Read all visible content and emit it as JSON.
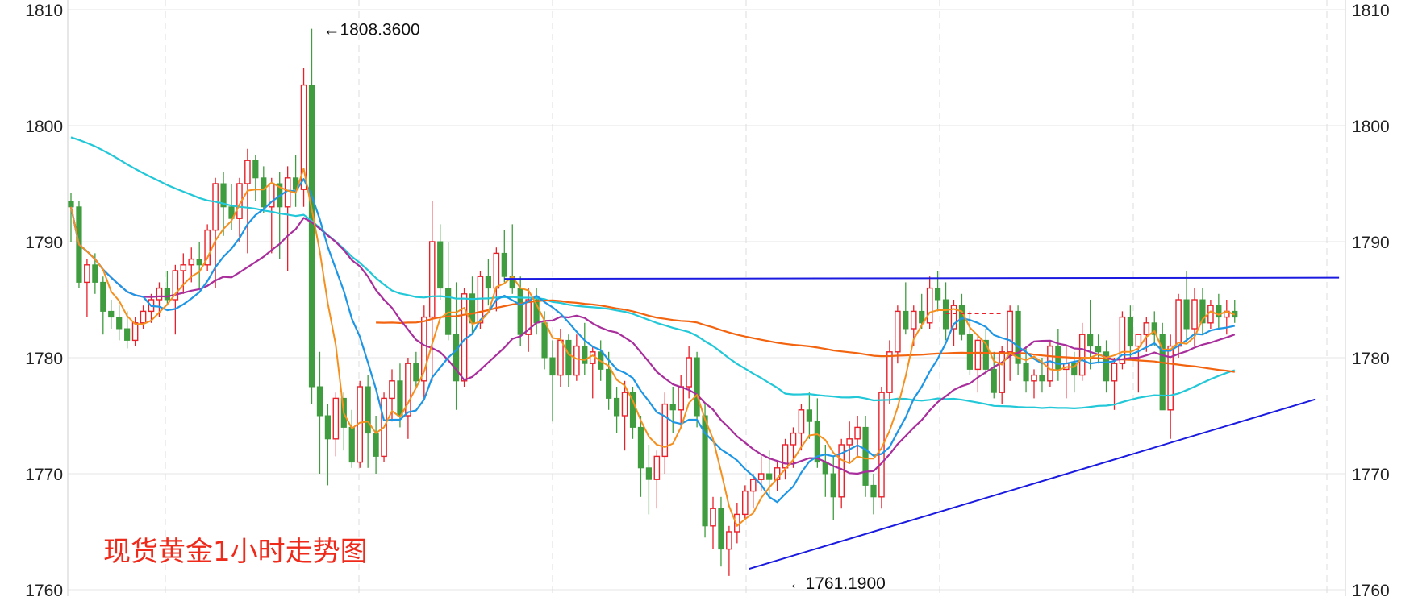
{
  "chart_data": {
    "type": "candlestick",
    "title": "现货黄金1小时走势图",
    "ylim": [
      1760,
      1810
    ],
    "y_ticks": [
      "1760",
      "1770",
      "1780",
      "1790",
      "1800",
      "1810"
    ],
    "grid": true,
    "colors": {
      "up": "#e8202a",
      "down": "#3f9c3f",
      "ma_orange": "#f5901e",
      "ma_blue": "#1e96e6",
      "ma_purple": "#a82e9c",
      "ma_cyan": "#22c8d8",
      "ma_darkorange": "#f26410",
      "trendline": "#1a1ae0",
      "title": "#ee2a1b"
    },
    "annotations": [
      {
        "text": "←1808.3600",
        "x": 31,
        "y": 1808.36
      },
      {
        "text": "←1761.1900",
        "x": 89,
        "y": 1761.19
      }
    ],
    "candles": [
      [
        1793.5,
        1794.2,
        1790.0,
        1793.0
      ],
      [
        1793.0,
        1793.5,
        1786.0,
        1786.5
      ],
      [
        1786.5,
        1788.5,
        1783.5,
        1788.0
      ],
      [
        1788.0,
        1789.0,
        1785.5,
        1786.5
      ],
      [
        1786.5,
        1787.0,
        1782.0,
        1784.0
      ],
      [
        1784.0,
        1785.0,
        1782.5,
        1783.5
      ],
      [
        1783.5,
        1784.5,
        1781.5,
        1782.5
      ],
      [
        1782.5,
        1784.0,
        1780.8,
        1781.5
      ],
      [
        1781.5,
        1783.5,
        1781.0,
        1783.0
      ],
      [
        1783.0,
        1784.5,
        1782.5,
        1784.0
      ],
      [
        1784.0,
        1785.5,
        1783.0,
        1785.0
      ],
      [
        1785.0,
        1786.5,
        1783.5,
        1786.0
      ],
      [
        1786.0,
        1787.5,
        1784.5,
        1785.0
      ],
      [
        1785.0,
        1788.0,
        1782.0,
        1787.5
      ],
      [
        1787.5,
        1789.0,
        1785.5,
        1788.0
      ],
      [
        1788.0,
        1789.5,
        1786.5,
        1788.5
      ],
      [
        1788.5,
        1790.0,
        1786.0,
        1788.0
      ],
      [
        1788.0,
        1791.5,
        1787.5,
        1791.0
      ],
      [
        1791.0,
        1795.5,
        1786.0,
        1795.0
      ],
      [
        1795.0,
        1796.0,
        1790.5,
        1793.0
      ],
      [
        1793.0,
        1795.0,
        1791.0,
        1792.0
      ],
      [
        1792.0,
        1795.5,
        1790.0,
        1795.0
      ],
      [
        1795.0,
        1798.0,
        1789.0,
        1797.0
      ],
      [
        1797.0,
        1797.5,
        1793.5,
        1795.5
      ],
      [
        1795.5,
        1796.5,
        1792.5,
        1793.0
      ],
      [
        1793.0,
        1795.5,
        1789.0,
        1795.0
      ],
      [
        1795.0,
        1796.0,
        1788.5,
        1793.0
      ],
      [
        1793.0,
        1796.5,
        1787.5,
        1795.5
      ],
      [
        1795.5,
        1797.5,
        1793.0,
        1794.5
      ],
      [
        1794.5,
        1805.0,
        1793.0,
        1803.5
      ],
      [
        1803.5,
        1808.36,
        1776.0,
        1777.5
      ],
      [
        1777.5,
        1780.5,
        1770.0,
        1775.0
      ],
      [
        1775.0,
        1776.0,
        1769.0,
        1773.0
      ],
      [
        1773.0,
        1777.0,
        1771.5,
        1776.5
      ],
      [
        1776.5,
        1777.0,
        1772.0,
        1774.0
      ],
      [
        1774.0,
        1775.5,
        1770.5,
        1771.0
      ],
      [
        1771.0,
        1778.0,
        1770.5,
        1777.5
      ],
      [
        1777.5,
        1778.5,
        1770.5,
        1773.5
      ],
      [
        1773.5,
        1775.0,
        1770.0,
        1771.5
      ],
      [
        1771.5,
        1777.0,
        1771.0,
        1776.5
      ],
      [
        1776.5,
        1779.0,
        1774.5,
        1778.0
      ],
      [
        1778.0,
        1779.5,
        1774.0,
        1775.0
      ],
      [
        1775.0,
        1780.0,
        1773.0,
        1779.5
      ],
      [
        1779.5,
        1780.5,
        1777.5,
        1778.0
      ],
      [
        1778.0,
        1784.5,
        1776.5,
        1783.5
      ],
      [
        1783.5,
        1793.5,
        1778.0,
        1790.0
      ],
      [
        1790.0,
        1791.5,
        1785.0,
        1786.0
      ],
      [
        1786.0,
        1790.0,
        1781.5,
        1782.0
      ],
      [
        1782.0,
        1786.5,
        1775.5,
        1778.0
      ],
      [
        1778.0,
        1786.0,
        1777.5,
        1785.5
      ],
      [
        1785.5,
        1787.0,
        1782.0,
        1783.0
      ],
      [
        1783.0,
        1787.5,
        1782.5,
        1787.0
      ],
      [
        1787.0,
        1788.5,
        1784.5,
        1786.0
      ],
      [
        1786.0,
        1789.5,
        1784.0,
        1789.0
      ],
      [
        1789.0,
        1791.0,
        1786.5,
        1787.0
      ],
      [
        1787.0,
        1791.5,
        1785.5,
        1786.0
      ],
      [
        1786.0,
        1787.0,
        1781.0,
        1782.0
      ],
      [
        1782.0,
        1786.0,
        1780.5,
        1785.0
      ],
      [
        1785.0,
        1786.0,
        1782.0,
        1783.0
      ],
      [
        1783.0,
        1784.0,
        1779.0,
        1780.0
      ],
      [
        1780.0,
        1781.5,
        1774.5,
        1778.5
      ],
      [
        1778.5,
        1782.5,
        1777.5,
        1781.5
      ],
      [
        1781.5,
        1782.0,
        1777.5,
        1778.5
      ],
      [
        1778.5,
        1782.0,
        1778.0,
        1781.0
      ],
      [
        1781.0,
        1783.0,
        1778.5,
        1779.5
      ],
      [
        1779.5,
        1781.0,
        1776.5,
        1780.5
      ],
      [
        1780.5,
        1781.5,
        1778.0,
        1779.0
      ],
      [
        1779.0,
        1780.5,
        1775.5,
        1776.5
      ],
      [
        1776.5,
        1777.5,
        1773.5,
        1775.0
      ],
      [
        1775.0,
        1778.0,
        1772.0,
        1777.0
      ],
      [
        1777.0,
        1777.5,
        1773.0,
        1774.0
      ],
      [
        1774.0,
        1775.0,
        1768.0,
        1770.5
      ],
      [
        1770.5,
        1772.5,
        1766.5,
        1769.5
      ],
      [
        1769.5,
        1772.0,
        1767.0,
        1771.5
      ],
      [
        1771.5,
        1777.0,
        1770.0,
        1776.0
      ],
      [
        1776.0,
        1777.5,
        1773.5,
        1775.5
      ],
      [
        1775.5,
        1778.5,
        1774.0,
        1777.5
      ],
      [
        1777.5,
        1781.0,
        1776.5,
        1780.0
      ],
      [
        1780.0,
        1780.5,
        1774.0,
        1775.0
      ],
      [
        1775.0,
        1776.0,
        1764.5,
        1765.5
      ],
      [
        1765.5,
        1768.0,
        1763.5,
        1767.0
      ],
      [
        1767.0,
        1768.0,
        1762.0,
        1763.5
      ],
      [
        1763.5,
        1765.5,
        1761.19,
        1765.0
      ],
      [
        1765.0,
        1767.5,
        1764.0,
        1766.5
      ],
      [
        1766.5,
        1769.0,
        1766.0,
        1768.5
      ],
      [
        1768.5,
        1770.0,
        1767.0,
        1769.5
      ],
      [
        1769.5,
        1771.5,
        1768.5,
        1770.0
      ],
      [
        1770.0,
        1772.0,
        1768.0,
        1769.5
      ],
      [
        1769.5,
        1771.0,
        1768.5,
        1770.5
      ],
      [
        1770.5,
        1773.0,
        1769.5,
        1772.5
      ],
      [
        1772.5,
        1774.0,
        1770.5,
        1773.5
      ],
      [
        1773.5,
        1776.0,
        1772.0,
        1775.5
      ],
      [
        1775.5,
        1777.0,
        1773.0,
        1774.5
      ],
      [
        1774.5,
        1776.5,
        1770.5,
        1771.0
      ],
      [
        1771.0,
        1772.5,
        1768.0,
        1770.0
      ],
      [
        1770.0,
        1771.5,
        1766.0,
        1768.0
      ],
      [
        1768.0,
        1773.0,
        1767.0,
        1772.5
      ],
      [
        1772.5,
        1774.5,
        1771.0,
        1773.0
      ],
      [
        1773.0,
        1775.0,
        1771.5,
        1774.0
      ],
      [
        1774.0,
        1775.0,
        1768.0,
        1769.0
      ],
      [
        1769.0,
        1770.0,
        1766.5,
        1768.0
      ],
      [
        1768.0,
        1777.5,
        1767.0,
        1777.0
      ],
      [
        1777.0,
        1781.5,
        1776.0,
        1780.5
      ],
      [
        1780.5,
        1784.5,
        1779.5,
        1784.0
      ],
      [
        1784.0,
        1786.5,
        1782.0,
        1782.5
      ],
      [
        1782.5,
        1784.5,
        1781.0,
        1784.0
      ],
      [
        1784.0,
        1785.5,
        1782.5,
        1783.0
      ],
      [
        1783.0,
        1787.0,
        1782.5,
        1786.0
      ],
      [
        1786.0,
        1787.5,
        1784.0,
        1785.0
      ],
      [
        1785.0,
        1786.5,
        1781.5,
        1782.5
      ],
      [
        1782.5,
        1785.0,
        1781.0,
        1784.5
      ],
      [
        1784.5,
        1785.5,
        1781.5,
        1782.0
      ],
      [
        1782.0,
        1784.0,
        1778.5,
        1779.0
      ],
      [
        1779.0,
        1782.0,
        1777.0,
        1781.5
      ],
      [
        1781.5,
        1782.5,
        1778.5,
        1779.0
      ],
      [
        1779.0,
        1780.5,
        1776.5,
        1777.0
      ],
      [
        1777.0,
        1781.0,
        1776.0,
        1780.5
      ],
      [
        1780.5,
        1784.5,
        1778.0,
        1784.0
      ],
      [
        1784.0,
        1784.5,
        1778.5,
        1779.5
      ],
      [
        1779.5,
        1781.0,
        1777.0,
        1778.0
      ],
      [
        1778.0,
        1779.0,
        1776.5,
        1778.5
      ],
      [
        1778.5,
        1780.0,
        1777.0,
        1778.0
      ],
      [
        1778.0,
        1781.5,
        1777.5,
        1781.0
      ],
      [
        1781.0,
        1782.5,
        1778.0,
        1779.0
      ],
      [
        1779.0,
        1781.0,
        1776.5,
        1779.5
      ],
      [
        1779.5,
        1780.5,
        1777.0,
        1778.5
      ],
      [
        1778.5,
        1783.0,
        1778.0,
        1782.0
      ],
      [
        1782.0,
        1785.0,
        1779.0,
        1781.0
      ],
      [
        1781.0,
        1782.0,
        1779.5,
        1780.5
      ],
      [
        1780.5,
        1781.5,
        1777.0,
        1778.0
      ],
      [
        1778.0,
        1780.0,
        1775.5,
        1779.5
      ],
      [
        1779.5,
        1784.0,
        1779.0,
        1783.5
      ],
      [
        1783.5,
        1784.5,
        1780.0,
        1781.0
      ],
      [
        1781.0,
        1782.0,
        1777.0,
        1782.0
      ],
      [
        1782.0,
        1783.5,
        1780.5,
        1783.0
      ],
      [
        1783.0,
        1784.0,
        1781.0,
        1782.0
      ],
      [
        1782.0,
        1783.0,
        1776.0,
        1775.5
      ],
      [
        1775.5,
        1782.0,
        1773.0,
        1781.0
      ],
      [
        1781.0,
        1785.5,
        1780.0,
        1785.0
      ],
      [
        1785.0,
        1787.5,
        1781.5,
        1782.5
      ],
      [
        1782.5,
        1786.0,
        1781.0,
        1785.0
      ],
      [
        1785.0,
        1786.0,
        1782.0,
        1783.0
      ],
      [
        1783.0,
        1785.0,
        1782.5,
        1784.5
      ],
      [
        1784.5,
        1785.5,
        1782.5,
        1783.5
      ],
      [
        1783.5,
        1785.0,
        1782.0,
        1784.0
      ],
      [
        1784.0,
        1785.0,
        1783.0,
        1783.5
      ]
    ],
    "trendlines": [
      {
        "from": [
          54,
          1786.8
        ],
        "to": [
          158,
          1786.9
        ]
      },
      {
        "from": [
          84.5,
          1761.8
        ],
        "to": [
          155,
          1776.4
        ]
      }
    ],
    "hline_dashed": {
      "from": [
        109,
        1783.8
      ],
      "to": [
        116,
        1783.8
      ]
    }
  }
}
